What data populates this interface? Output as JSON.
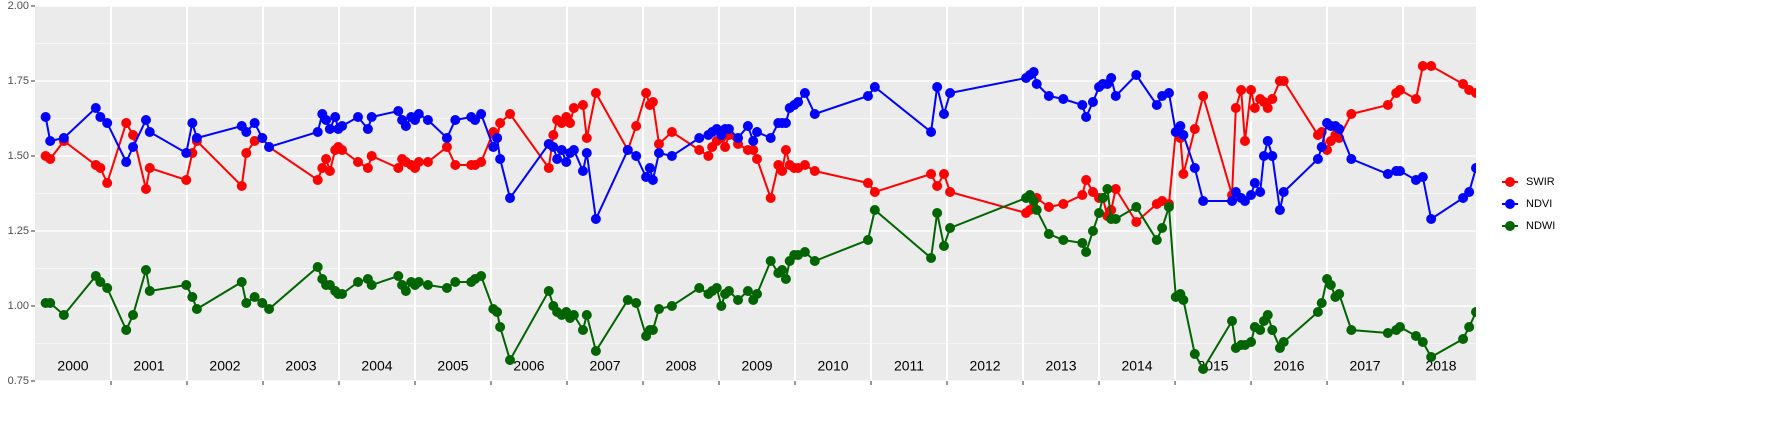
{
  "chart_data": {
    "type": "line",
    "x": [
      2000.14,
      2000.2,
      2000.38,
      2000.8,
      2000.86,
      2000.95,
      2001.2,
      2001.29,
      2001.46,
      2001.51,
      2001.99,
      2002.07,
      2002.13,
      2002.72,
      2002.78,
      2002.89,
      2002.99,
      2003.08,
      2003.72,
      2003.78,
      2003.83,
      2003.88,
      2003.95,
      2003.99,
      2004.04,
      2004.25,
      2004.38,
      2004.43,
      2004.78,
      2004.83,
      2004.88,
      2004.95,
      2005.0,
      2005.05,
      2005.17,
      2005.42,
      2005.53,
      2005.74,
      2005.79,
      2005.87,
      2006.03,
      2006.08,
      2006.12,
      2006.25,
      2006.76,
      2006.82,
      2006.87,
      2006.93,
      2006.99,
      2007.04,
      2007.09,
      2007.21,
      2007.26,
      2007.38,
      2007.8,
      2007.91,
      2008.04,
      2008.09,
      2008.13,
      2008.21,
      2008.38,
      2008.74,
      2008.86,
      2008.91,
      2008.97,
      2009.03,
      2009.08,
      2009.13,
      2009.25,
      2009.38,
      2009.45,
      2009.5,
      2009.68,
      2009.78,
      2009.83,
      2009.88,
      2009.93,
      2009.99,
      2010.04,
      2010.13,
      2010.26,
      2010.96,
      2011.05,
      2011.79,
      2011.87,
      2011.96,
      2012.04,
      2013.04,
      2013.09,
      2013.14,
      2013.18,
      2013.34,
      2013.53,
      2013.78,
      2013.83,
      2013.92,
      2014.0,
      2014.05,
      2014.11,
      2014.16,
      2014.22,
      2014.49,
      2014.76,
      2014.83,
      2014.92,
      2015.01,
      2015.07,
      2015.11,
      2015.26,
      2015.37,
      2015.75,
      2015.8,
      2015.87,
      2015.92,
      2016.0,
      2016.05,
      2016.12,
      2016.17,
      2016.22,
      2016.28,
      2016.38,
      2016.43,
      2016.88,
      2016.93,
      2017.0,
      2017.05,
      2017.11,
      2017.16,
      2017.32,
      2017.8,
      2017.91,
      2017.96,
      2018.17,
      2018.26,
      2018.37,
      2018.79,
      2018.87,
      2018.96
    ],
    "series": [
      {
        "name": "SWIR",
        "color": "#ff0000",
        "values": [
          1.5,
          1.49,
          1.55,
          1.47,
          1.46,
          1.41,
          1.61,
          1.57,
          1.39,
          1.46,
          1.42,
          1.51,
          1.55,
          1.4,
          1.51,
          1.55,
          1.56,
          1.53,
          1.42,
          1.46,
          1.49,
          1.45,
          1.52,
          1.53,
          1.52,
          1.48,
          1.46,
          1.5,
          1.46,
          1.49,
          1.48,
          1.47,
          1.46,
          1.48,
          1.48,
          1.53,
          1.47,
          1.47,
          1.47,
          1.48,
          1.58,
          1.56,
          1.61,
          1.64,
          1.46,
          1.57,
          1.62,
          1.61,
          1.63,
          1.61,
          1.66,
          1.67,
          1.56,
          1.71,
          1.52,
          1.6,
          1.71,
          1.67,
          1.68,
          1.54,
          1.58,
          1.52,
          1.5,
          1.53,
          1.55,
          1.56,
          1.53,
          1.57,
          1.54,
          1.52,
          1.52,
          1.49,
          1.36,
          1.47,
          1.45,
          1.52,
          1.47,
          1.46,
          1.46,
          1.47,
          1.45,
          1.41,
          1.38,
          1.44,
          1.4,
          1.44,
          1.38,
          1.31,
          1.32,
          1.33,
          1.36,
          1.33,
          1.34,
          1.37,
          1.42,
          1.38,
          1.36,
          1.36,
          1.3,
          1.32,
          1.39,
          1.28,
          1.34,
          1.35,
          1.34,
          1.58,
          1.56,
          1.44,
          1.59,
          1.7,
          1.37,
          1.66,
          1.72,
          1.55,
          1.72,
          1.66,
          1.69,
          1.68,
          1.66,
          1.69,
          1.75,
          1.75,
          1.57,
          1.58,
          1.52,
          1.55,
          1.57,
          1.56,
          1.64,
          1.67,
          1.71,
          1.72,
          1.69,
          1.8,
          1.8,
          1.74,
          1.72,
          1.71
        ]
      },
      {
        "name": "NDVI",
        "color": "#0000ff",
        "values": [
          1.63,
          1.55,
          1.56,
          1.66,
          1.63,
          1.61,
          1.48,
          1.53,
          1.62,
          1.58,
          1.51,
          1.61,
          1.56,
          1.6,
          1.58,
          1.61,
          1.56,
          1.53,
          1.58,
          1.64,
          1.62,
          1.59,
          1.63,
          1.59,
          1.6,
          1.63,
          1.59,
          1.63,
          1.65,
          1.62,
          1.6,
          1.63,
          1.62,
          1.64,
          1.62,
          1.56,
          1.62,
          1.63,
          1.62,
          1.64,
          1.53,
          1.56,
          1.49,
          1.36,
          1.54,
          1.53,
          1.49,
          1.52,
          1.48,
          1.51,
          1.52,
          1.45,
          1.51,
          1.29,
          1.52,
          1.5,
          1.43,
          1.46,
          1.42,
          1.51,
          1.5,
          1.56,
          1.57,
          1.58,
          1.59,
          1.57,
          1.59,
          1.59,
          1.56,
          1.6,
          1.55,
          1.58,
          1.56,
          1.61,
          1.61,
          1.61,
          1.66,
          1.67,
          1.68,
          1.71,
          1.64,
          1.7,
          1.73,
          1.58,
          1.73,
          1.64,
          1.71,
          1.76,
          1.77,
          1.78,
          1.74,
          1.7,
          1.69,
          1.67,
          1.63,
          1.68,
          1.73,
          1.74,
          1.74,
          1.76,
          1.7,
          1.77,
          1.67,
          1.7,
          1.71,
          1.58,
          1.6,
          1.57,
          1.46,
          1.35,
          1.35,
          1.38,
          1.36,
          1.35,
          1.37,
          1.41,
          1.38,
          1.5,
          1.55,
          1.5,
          1.32,
          1.38,
          1.49,
          1.53,
          1.61,
          1.6,
          1.6,
          1.59,
          1.49,
          1.44,
          1.45,
          1.45,
          1.42,
          1.43,
          1.29,
          1.36,
          1.38,
          1.46
        ]
      },
      {
        "name": "NDWI",
        "color": "#006400",
        "values": [
          1.01,
          1.01,
          0.97,
          1.1,
          1.08,
          1.06,
          0.92,
          0.97,
          1.12,
          1.05,
          1.07,
          1.03,
          0.99,
          1.08,
          1.01,
          1.03,
          1.01,
          0.99,
          1.13,
          1.09,
          1.07,
          1.07,
          1.05,
          1.04,
          1.04,
          1.08,
          1.09,
          1.07,
          1.1,
          1.07,
          1.05,
          1.08,
          1.07,
          1.08,
          1.07,
          1.06,
          1.08,
          1.08,
          1.09,
          1.1,
          0.99,
          0.98,
          0.93,
          0.82,
          1.05,
          1.0,
          0.98,
          0.97,
          0.98,
          0.96,
          0.97,
          0.92,
          0.97,
          0.85,
          1.02,
          1.01,
          0.9,
          0.92,
          0.92,
          0.99,
          1.0,
          1.06,
          1.04,
          1.05,
          1.06,
          1.0,
          1.04,
          1.05,
          1.02,
          1.05,
          1.02,
          1.04,
          1.15,
          1.11,
          1.12,
          1.09,
          1.15,
          1.17,
          1.17,
          1.18,
          1.15,
          1.22,
          1.32,
          1.16,
          1.31,
          1.2,
          1.26,
          1.36,
          1.37,
          1.35,
          1.32,
          1.24,
          1.22,
          1.21,
          1.18,
          1.25,
          1.31,
          1.36,
          1.39,
          1.29,
          1.29,
          1.33,
          1.22,
          1.26,
          1.33,
          1.03,
          1.04,
          1.02,
          0.84,
          0.79,
          0.95,
          0.86,
          0.87,
          0.87,
          0.88,
          0.93,
          0.92,
          0.95,
          0.97,
          0.92,
          0.86,
          0.88,
          0.98,
          1.01,
          1.09,
          1.07,
          1.03,
          1.04,
          0.92,
          0.91,
          0.92,
          0.93,
          0.9,
          0.88,
          0.83,
          0.89,
          0.93,
          0.98
        ]
      }
    ],
    "xlim": [
      2000,
      2018.96
    ],
    "xticks": [
      2001,
      2002,
      2003,
      2004,
      2005,
      2006,
      2007,
      2008,
      2009,
      2010,
      2011,
      2012,
      2013,
      2014,
      2015,
      2016,
      2017,
      2018
    ],
    "ylim": [
      0.75,
      2.0
    ],
    "yticks": [
      {
        "value": 0.75,
        "label": "0.75"
      },
      {
        "value": 1.0,
        "label": "1.00"
      },
      {
        "value": 1.25,
        "label": "1.25"
      },
      {
        "value": 1.5,
        "label": "1.50"
      },
      {
        "value": 1.75,
        "label": "1.75"
      },
      {
        "value": 2.0,
        "label": "2.00"
      }
    ],
    "year_labels": [
      "2000",
      "2001",
      "2002",
      "2003",
      "2004",
      "2005",
      "2006",
      "2007",
      "2008",
      "2009",
      "2010",
      "2011",
      "2012",
      "2013",
      "2014",
      "2015",
      "2016",
      "2017",
      "2018"
    ],
    "grid": true,
    "legend": "right"
  }
}
